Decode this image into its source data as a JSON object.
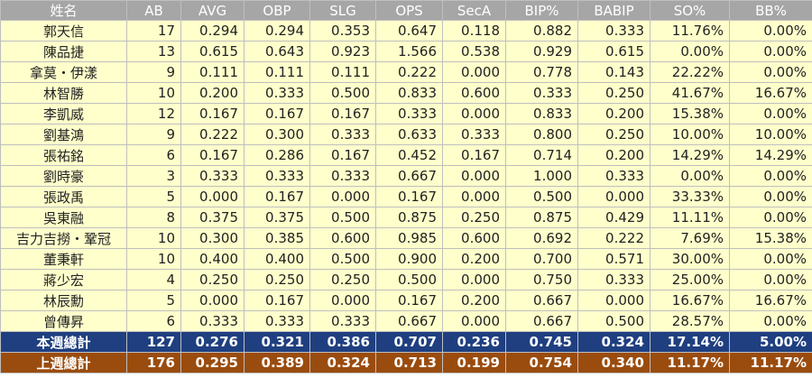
{
  "table": {
    "header": [
      "姓名",
      "AB",
      "AVG",
      "OBP",
      "SLG",
      "OPS",
      "SecA",
      "BIP%",
      "BABIP",
      "SO%",
      "BB%"
    ],
    "rows": [
      [
        "郭天信",
        "17",
        "0.294",
        "0.294",
        "0.353",
        "0.647",
        "0.118",
        "0.882",
        "0.333",
        "11.76%",
        "0.00%"
      ],
      [
        "陳品捷",
        "13",
        "0.615",
        "0.643",
        "0.923",
        "1.566",
        "0.538",
        "0.929",
        "0.615",
        "0.00%",
        "0.00%"
      ],
      [
        "拿莫・伊漾",
        "9",
        "0.111",
        "0.111",
        "0.111",
        "0.222",
        "0.000",
        "0.778",
        "0.143",
        "22.22%",
        "0.00%"
      ],
      [
        "林智勝",
        "10",
        "0.200",
        "0.333",
        "0.500",
        "0.833",
        "0.600",
        "0.333",
        "0.250",
        "41.67%",
        "16.67%"
      ],
      [
        "李凱威",
        "12",
        "0.167",
        "0.167",
        "0.167",
        "0.333",
        "0.000",
        "0.833",
        "0.200",
        "15.38%",
        "0.00%"
      ],
      [
        "劉基鴻",
        "9",
        "0.222",
        "0.300",
        "0.333",
        "0.633",
        "0.333",
        "0.800",
        "0.250",
        "10.00%",
        "10.00%"
      ],
      [
        "張祐銘",
        "6",
        "0.167",
        "0.286",
        "0.167",
        "0.452",
        "0.167",
        "0.714",
        "0.200",
        "14.29%",
        "14.29%"
      ],
      [
        "劉時豪",
        "3",
        "0.333",
        "0.333",
        "0.333",
        "0.667",
        "0.000",
        "1.000",
        "0.333",
        "0.00%",
        "0.00%"
      ],
      [
        "張政禹",
        "5",
        "0.000",
        "0.167",
        "0.000",
        "0.167",
        "0.000",
        "0.500",
        "0.000",
        "33.33%",
        "0.00%"
      ],
      [
        "吳東融",
        "8",
        "0.375",
        "0.375",
        "0.500",
        "0.875",
        "0.250",
        "0.875",
        "0.429",
        "11.11%",
        "0.00%"
      ],
      [
        "吉力吉撈・鞏冠",
        "10",
        "0.300",
        "0.385",
        "0.600",
        "0.985",
        "0.600",
        "0.692",
        "0.222",
        "7.69%",
        "15.38%"
      ],
      [
        "董秉軒",
        "10",
        "0.400",
        "0.400",
        "0.500",
        "0.900",
        "0.200",
        "0.700",
        "0.571",
        "30.00%",
        "0.00%"
      ],
      [
        "蔣少宏",
        "4",
        "0.250",
        "0.250",
        "0.250",
        "0.500",
        "0.000",
        "0.750",
        "0.333",
        "25.00%",
        "0.00%"
      ],
      [
        "林辰勳",
        "5",
        "0.000",
        "0.167",
        "0.000",
        "0.167",
        "0.200",
        "0.667",
        "0.000",
        "16.67%",
        "16.67%"
      ],
      [
        "曾傳昇",
        "6",
        "0.333",
        "0.333",
        "0.333",
        "0.667",
        "0.000",
        "0.667",
        "0.500",
        "28.57%",
        "0.00%"
      ]
    ],
    "summary_rows": [
      [
        "本週總計",
        "127",
        "0.276",
        "0.321",
        "0.386",
        "0.707",
        "0.236",
        "0.745",
        "0.324",
        "17.14%",
        "5.00%"
      ],
      [
        "上週總計",
        "176",
        "0.295",
        "0.389",
        "0.324",
        "0.713",
        "0.199",
        "0.754",
        "0.340",
        "11.17%",
        "11.17%"
      ]
    ]
  }
}
